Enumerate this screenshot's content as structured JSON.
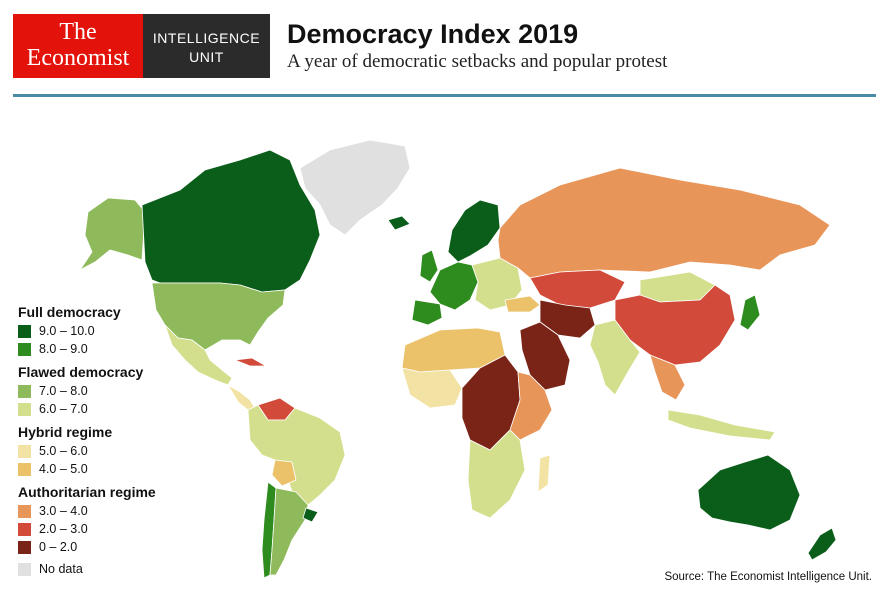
{
  "brand": {
    "logo_line1": "The",
    "logo_line2": "Economist",
    "unit_line1": "INTELLIGENCE",
    "unit_line2": "UNIT"
  },
  "header": {
    "title": "Democracy Index 2019",
    "subtitle": "A year of democratic setbacks and popular protest"
  },
  "legend": {
    "groups": [
      {
        "heading": "Full democracy",
        "items": [
          {
            "label": "9.0 – 10.0",
            "color": "#0b5e1a"
          },
          {
            "label": "8.0 – 9.0",
            "color": "#2e8b1e"
          }
        ]
      },
      {
        "heading": "Flawed democracy",
        "items": [
          {
            "label": "7.0 – 8.0",
            "color": "#8fba5c"
          },
          {
            "label": "6.0 – 7.0",
            "color": "#d4df8d"
          }
        ]
      },
      {
        "heading": "Hybrid regime",
        "items": [
          {
            "label": "5.0 – 6.0",
            "color": "#f2e2a4"
          },
          {
            "label": "4.0 – 5.0",
            "color": "#ebc26a"
          }
        ]
      },
      {
        "heading": "Authoritarian regime",
        "items": [
          {
            "label": "3.0 – 4.0",
            "color": "#e8955a"
          },
          {
            "label": "2.0 – 3.0",
            "color": "#d24b3a"
          },
          {
            "label": "0 – 2.0",
            "color": "#7a2417"
          }
        ]
      }
    ],
    "no_data": {
      "label": "No data",
      "color": "#e0e0e0"
    }
  },
  "footer": {
    "source": "Source: The Economist Intelligence Unit."
  }
}
